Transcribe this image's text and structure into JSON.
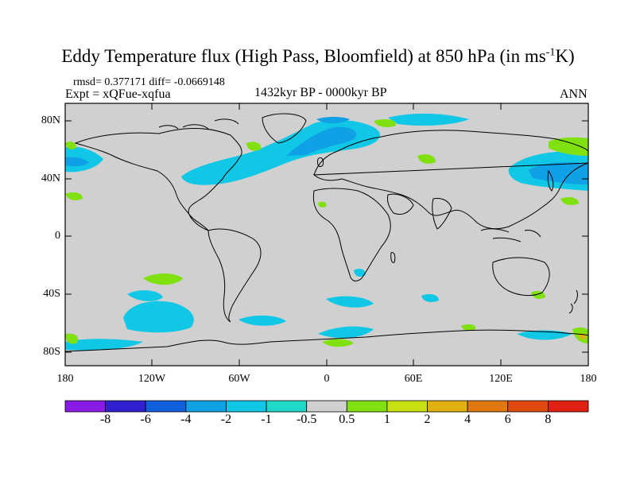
{
  "title_main": "Eddy Temperature flux (High Pass, Bloomfield) at 850 hPa (in ms",
  "title_sup": "-1",
  "title_end": "K)",
  "stats": "rmsd= 0.377171 diff= -0.0669148",
  "expt": "Expt = xQFue-xqfua",
  "period": "1432kyr BP - 0000kyr BP",
  "season": "ANN",
  "lat_labels": [
    "80N",
    "40N",
    "0",
    "40S",
    "80S"
  ],
  "lon_labels": [
    "180",
    "120W",
    "60W",
    "0",
    "60E",
    "120E",
    "180"
  ],
  "colorbar": {
    "labels": [
      "-8",
      "-6",
      "-4",
      "-2",
      "-1",
      "-0.5",
      "0.5",
      "1",
      "2",
      "4",
      "6",
      "8"
    ],
    "colors": [
      "#8a1ae6",
      "#3020d0",
      "#1060e0",
      "#10a0e6",
      "#10c8e6",
      "#20d8c8",
      "#d0d0d0",
      "#80e010",
      "#c8e010",
      "#e0b010",
      "#e07810",
      "#e04a10",
      "#e02010"
    ]
  },
  "colors": {
    "land_ocean": "#d0d0d0",
    "coast": "#000000",
    "neg_light": "#20d8c8",
    "neg_mid": "#10c8e6",
    "neg_strong": "#10a0e6",
    "pos_light": "#80e010"
  }
}
